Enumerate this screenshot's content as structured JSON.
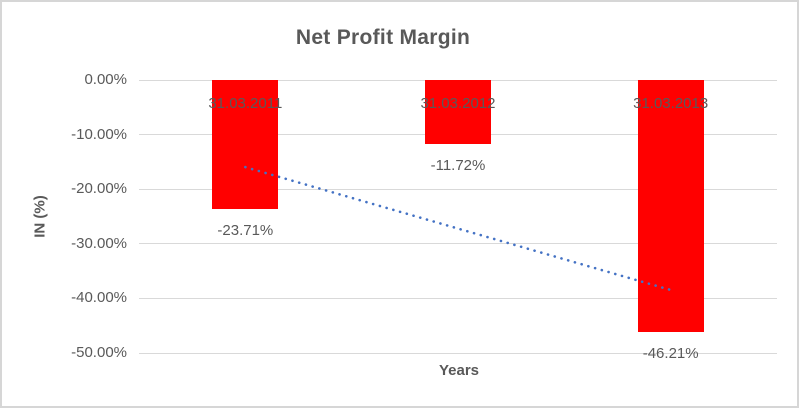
{
  "chart_data": {
    "type": "bar",
    "title": "Net Profit Margin",
    "xlabel": "Years",
    "ylabel": "IN (%)",
    "categories": [
      "31.03.2011",
      "31.03.2012",
      "31.03.2013"
    ],
    "values": [
      -23.71,
      -11.72,
      -46.21
    ],
    "data_labels": [
      "-23.71%",
      "-11.72%",
      "-46.21%"
    ],
    "ylim": [
      -50,
      0
    ],
    "y_ticks": [
      {
        "label": "0.00%",
        "value": 0
      },
      {
        "label": "-10.00%",
        "value": -10
      },
      {
        "label": "-20.00%",
        "value": -20
      },
      {
        "label": "-30.00%",
        "value": -30
      },
      {
        "label": "-40.00%",
        "value": -40
      },
      {
        "label": "-50.00%",
        "value": -50
      }
    ],
    "grid": "horizontal",
    "legend": "none",
    "bar_color": "#ff0000",
    "text_color": "#595959",
    "gridline_color": "#d9d9d9",
    "trendline": {
      "type": "linear",
      "style": "dotted",
      "color": "#4472c4",
      "start_value": -15.96,
      "end_value": -38.46
    }
  }
}
